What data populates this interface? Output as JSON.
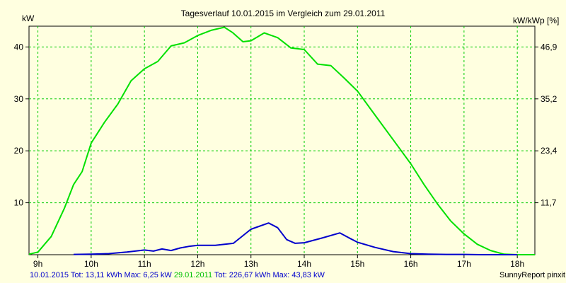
{
  "chart_data": {
    "type": "line",
    "title": "Tagesverlauf 10.01.2015 im Vergleich zum 29.01.2011",
    "ylabel_left": "kW",
    "ylabel_right": "kW/kWp [%]",
    "x_ticks": [
      "9h",
      "10h",
      "11h",
      "12h",
      "13h",
      "14h",
      "15h",
      "16h",
      "17h",
      "18h"
    ],
    "xlim": [
      8.833,
      18.33
    ],
    "y_ticks_left": [
      "10",
      "20",
      "30",
      "40"
    ],
    "ylim_left": [
      0,
      44
    ],
    "y_ticks_right": [
      "11,7",
      "23,4",
      "35,2",
      "46,9"
    ],
    "grid": true,
    "series": [
      {
        "name": "29.01.2011",
        "color": "#00e000",
        "x": [
          8.833,
          9.0,
          9.25,
          9.5,
          9.67,
          9.83,
          10.0,
          10.25,
          10.5,
          10.75,
          11.0,
          11.25,
          11.5,
          11.75,
          12.0,
          12.25,
          12.5,
          12.65,
          12.85,
          13.0,
          13.25,
          13.5,
          13.75,
          14.0,
          14.25,
          14.5,
          14.75,
          15.0,
          15.25,
          15.5,
          15.75,
          16.0,
          16.25,
          16.5,
          16.75,
          17.0,
          17.25,
          17.5,
          17.75,
          18.0,
          18.33
        ],
        "values": [
          0.1,
          0.5,
          3.5,
          9.0,
          13.5,
          16.0,
          21.5,
          25.5,
          29.0,
          33.5,
          35.8,
          37.2,
          40.2,
          40.8,
          42.2,
          43.2,
          43.8,
          42.8,
          41.0,
          41.2,
          42.7,
          41.8,
          39.8,
          39.5,
          36.7,
          36.4,
          34.0,
          31.5,
          28.0,
          24.5,
          21.0,
          17.5,
          13.5,
          9.8,
          6.5,
          4.0,
          2.0,
          0.8,
          0.1,
          0.0,
          0.0
        ]
      },
      {
        "name": "10.01.2015",
        "color": "#0000cc",
        "x": [
          9.67,
          10.0,
          10.33,
          10.67,
          11.0,
          11.17,
          11.33,
          11.5,
          11.67,
          11.83,
          12.0,
          12.33,
          12.67,
          13.0,
          13.33,
          13.5,
          13.67,
          13.83,
          14.0,
          14.33,
          14.67,
          14.83,
          15.0,
          15.33,
          15.67,
          16.0,
          16.33,
          16.67,
          17.0,
          17.33,
          17.67,
          18.0
        ],
        "values": [
          0.05,
          0.1,
          0.2,
          0.5,
          0.9,
          0.7,
          1.1,
          0.8,
          1.3,
          1.6,
          1.8,
          1.8,
          2.2,
          4.9,
          6.1,
          5.2,
          2.9,
          2.2,
          2.3,
          3.2,
          4.2,
          3.3,
          2.4,
          1.4,
          0.6,
          0.2,
          0.1,
          0.05,
          0.05,
          0.0,
          0.0,
          0.0
        ]
      }
    ]
  },
  "footer": {
    "series1_label": "10.01.2015",
    "series1_stats": "Tot: 13,11 kWh Max: 6,25 kW",
    "series2_label": "29.01.2011",
    "series2_stats": "Tot: 226,67 kWh Max: 43,83 kW",
    "credit": "SunnyReport pinxit"
  }
}
